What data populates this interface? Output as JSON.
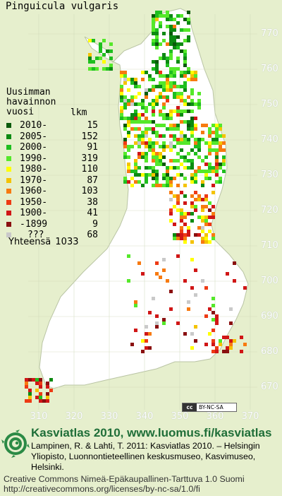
{
  "title": "Pinguicula vulgaris",
  "legend": {
    "heading_lines": [
      "Uusimman",
      "havainnon",
      "vuosi"
    ],
    "count_heading": "lkm",
    "items": [
      {
        "label": "2010-",
        "count": "15",
        "color": "#0a5a0a"
      },
      {
        "label": "2005-",
        "count": "152",
        "color": "#0c8a12"
      },
      {
        "label": "2000-",
        "count": "91",
        "color": "#1fbf1f"
      },
      {
        "label": "1990-",
        "count": "319",
        "color": "#55e82a"
      },
      {
        "label": "1980-",
        "count": "110",
        "color": "#ffff00"
      },
      {
        "label": "1970-",
        "count": "87",
        "color": "#f4c300"
      },
      {
        "label": "1960-",
        "count": "103",
        "color": "#f77a10"
      },
      {
        "label": "1950-",
        "count": "38",
        "color": "#ee3a14"
      },
      {
        "label": "1900-",
        "count": "41",
        "color": "#d01616"
      },
      {
        "label": "-1899",
        "count": "9",
        "color": "#8a1010"
      },
      {
        "label": "???",
        "count": "68",
        "color": "#c9c9c9"
      }
    ],
    "total_label": "Yhteensä",
    "total_value": "1033"
  },
  "axes": {
    "y_ticks": [
      "770",
      "760",
      "750",
      "740",
      "730",
      "720",
      "710",
      "700",
      "690",
      "680",
      "670"
    ],
    "x_ticks": [
      "310",
      "320",
      "330",
      "340",
      "350",
      "360",
      "370"
    ]
  },
  "cc_badge": {
    "logo": "cc",
    "text": "BY-NC-SA"
  },
  "footer": {
    "site": "Kasviatlas 2010, www.luomus.fi/kasviatlas",
    "citation": "Lampinen, R. & Lahti, T. 2011: Kasviatlas 2010. – Helsingin Yliopisto, Luonnontieteellinen keskusmuseo, Kasvimuseo, Helsinki.",
    "license_line1": "Creative Commons Nimeä-Epäkaupallinen-Tarttuva 1.0 Suomi",
    "license_line2": "http://creativecommons.org/licenses/by-nc-sa/1.0/fi"
  },
  "colors": {
    "background": "#e6efcd",
    "land": "#ffffff",
    "grid": "#cfd8b8",
    "brand": "#1f6e38"
  }
}
